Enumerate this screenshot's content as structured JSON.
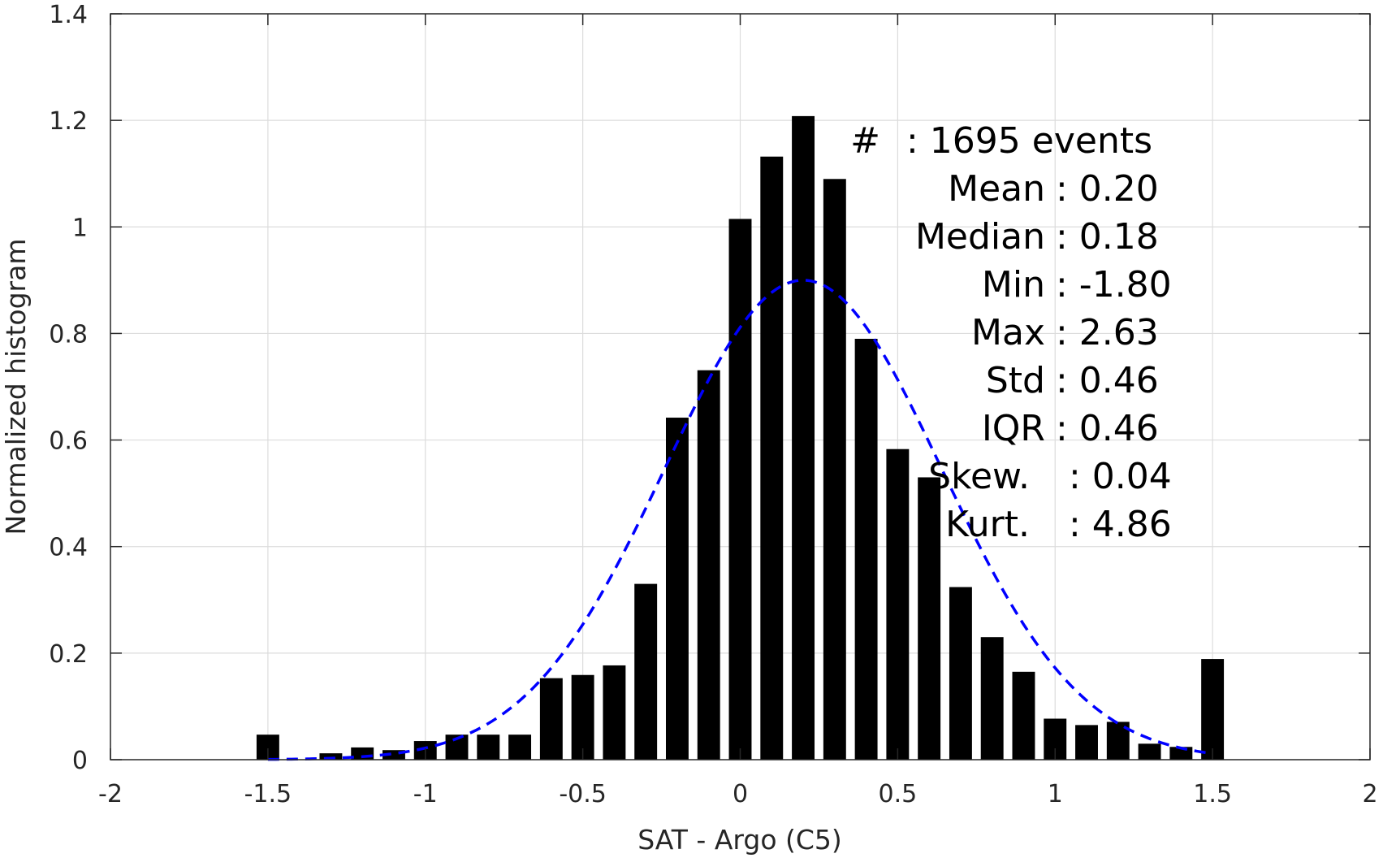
{
  "chart_data": {
    "type": "bar",
    "xlabel": "SAT - Argo (C5)",
    "ylabel": "Normalized histogram",
    "xlim": [
      -2,
      2
    ],
    "ylim": [
      0,
      1.4
    ],
    "grid": true,
    "x_ticks": [
      -2,
      -1.5,
      -1,
      -0.5,
      0,
      0.5,
      1,
      1.5,
      2
    ],
    "x_tick_labels": [
      "-2",
      "-1.5",
      "-1",
      "-0.5",
      "0",
      "0.5",
      "1",
      "1.5",
      "2"
    ],
    "y_ticks": [
      0,
      0.2,
      0.4,
      0.6,
      0.8,
      1,
      1.2,
      1.4
    ],
    "y_tick_labels": [
      "0",
      "0.2",
      "0.4",
      "0.6",
      "0.8",
      "1",
      "1.2",
      "1.4"
    ],
    "bin_width": 0.1,
    "bars": {
      "color": "#000000",
      "x": [
        -1.5,
        -1.3,
        -1.2,
        -1.1,
        -1.0,
        -0.9,
        -0.8,
        -0.7,
        -0.6,
        -0.5,
        -0.4,
        -0.3,
        -0.2,
        -0.1,
        0.0,
        0.1,
        0.2,
        0.3,
        0.4,
        0.5,
        0.6,
        0.7,
        0.8,
        0.9,
        1.0,
        1.1,
        1.2,
        1.3,
        1.4,
        1.5
      ],
      "values": [
        0.047,
        0.012,
        0.023,
        0.018,
        0.035,
        0.047,
        0.047,
        0.047,
        0.153,
        0.159,
        0.177,
        0.33,
        0.642,
        0.731,
        1.015,
        1.132,
        1.208,
        1.09,
        0.79,
        0.583,
        0.53,
        0.324,
        0.23,
        0.165,
        0.077,
        0.065,
        0.071,
        0.03,
        0.024,
        0.189
      ]
    },
    "fit": {
      "style": "dashed",
      "color": "#0000ff",
      "mean": 0.2,
      "std": 0.44,
      "peak": 0.9,
      "x_range": [
        -1.5,
        1.5
      ]
    },
    "stats": [
      {
        "label": "#",
        "value": ": 1695 events"
      },
      {
        "label": "Mean",
        "value": ": 0.20"
      },
      {
        "label": "Median",
        "value": ": 0.18"
      },
      {
        "label": "Min",
        "value": ": -1.80"
      },
      {
        "label": "Max",
        "value": ": 2.63"
      },
      {
        "label": "Std",
        "value": ": 0.46"
      },
      {
        "label": "IQR",
        "value": ": 0.46"
      },
      {
        "label": "Skew.",
        "value": ": 0.04"
      },
      {
        "label": "Kurt.",
        "value": ": 4.86"
      }
    ]
  }
}
